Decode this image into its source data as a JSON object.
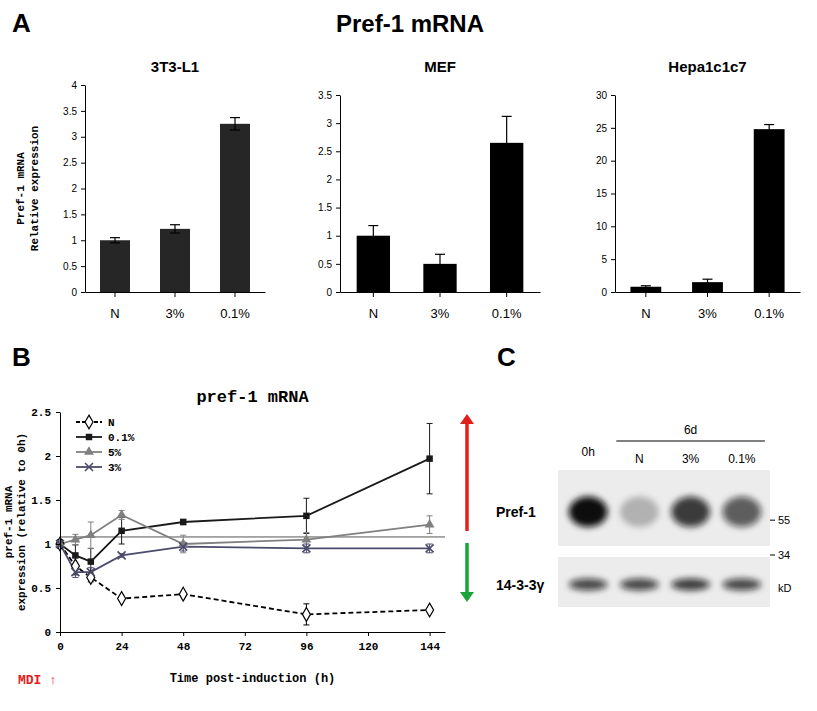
{
  "figure": {
    "title": "Pref-1 mRNA",
    "panels": [
      "A",
      "B",
      "C"
    ]
  },
  "chart_data": [
    {
      "type": "bar",
      "title": "3T3-L1",
      "ylabel": [
        "Pref-1 mRNA",
        "Relative expression"
      ],
      "categories": [
        "N",
        "3%",
        "0.1%"
      ],
      "values": [
        1.0,
        1.22,
        3.25
      ],
      "error": [
        0.05,
        0.08,
        0.12
      ],
      "color": "#262626",
      "ylim": [
        0,
        4
      ],
      "yticks": [
        0,
        0.5,
        1,
        1.5,
        2,
        2.5,
        3,
        3.5,
        4
      ]
    },
    {
      "type": "bar",
      "title": "MEF",
      "categories": [
        "N",
        "3%",
        "0.1%"
      ],
      "values": [
        1.0,
        0.5,
        2.65
      ],
      "error": [
        0.18,
        0.17,
        0.47
      ],
      "color": "#000000",
      "ylim": [
        0,
        3.5
      ],
      "yticks": [
        0,
        0.5,
        1,
        1.5,
        2,
        2.5,
        3,
        3.5
      ]
    },
    {
      "type": "bar",
      "title": "Hepa1c1c7",
      "categories": [
        "N",
        "3%",
        "0.1%"
      ],
      "values": [
        0.8,
        1.5,
        24.8
      ],
      "error": [
        0.15,
        0.45,
        0.7
      ],
      "color": "#000000",
      "ylim": [
        0,
        30
      ],
      "yticks": [
        0,
        5,
        10,
        15,
        20,
        25,
        30
      ]
    },
    {
      "type": "line",
      "title": "pref-1 mRNA",
      "ylabel": [
        "pref-1 mRNA",
        "expression (relative to 0h)"
      ],
      "xlabel": "Time post-induction (h)",
      "annotation": "MDI ↑",
      "x": [
        0,
        6,
        12,
        24,
        48,
        96,
        144
      ],
      "xlim": [
        0,
        150
      ],
      "xticks": [
        0,
        24,
        48,
        72,
        96,
        120,
        144
      ],
      "ylim": [
        0,
        2.5
      ],
      "yticks": [
        0,
        0.5,
        1,
        1.5,
        2,
        2.5
      ],
      "reference_line": 1.08,
      "legend": "upper left",
      "series": [
        {
          "name": "N",
          "color": "#000000",
          "marker": "diamond-open",
          "line_style": "dashed",
          "values": [
            1.0,
            0.75,
            0.62,
            0.38,
            0.43,
            0.2,
            0.25
          ],
          "error": [
            0.05,
            0.1,
            0.05,
            0.02,
            0.02,
            0.12,
            0.02
          ]
        },
        {
          "name": "0.1%",
          "color": "#1a1a1a",
          "marker": "square",
          "line_style": "solid",
          "values": [
            1.0,
            0.87,
            0.8,
            1.15,
            1.25,
            1.32,
            1.97
          ],
          "error": [
            0.05,
            0.12,
            0.15,
            0.15,
            0.03,
            0.2,
            0.4
          ]
        },
        {
          "name": "5%",
          "color": "#808080",
          "marker": "triangle",
          "line_style": "solid",
          "values": [
            1.0,
            1.05,
            1.1,
            1.33,
            1.0,
            1.05,
            1.22
          ],
          "error": [
            0.05,
            0.06,
            0.15,
            0.05,
            0.1,
            0.08,
            0.1
          ]
        },
        {
          "name": "3%",
          "color": "#4b4b6b",
          "marker": "x",
          "line_style": "solid",
          "values": [
            1.0,
            0.68,
            0.68,
            0.87,
            0.97,
            0.95,
            0.95
          ],
          "error": [
            0.05,
            0.06,
            0.05,
            0.02,
            0.05,
            0.05,
            0.05
          ]
        }
      ]
    }
  ],
  "blot": {
    "lanes": [
      "0h",
      "N",
      "3%",
      "0.1%"
    ],
    "time_label": "6d",
    "rows": [
      {
        "name": "Pref-1",
        "band_intensity": [
          1.0,
          0.25,
          0.8,
          0.65
        ]
      },
      {
        "name": "14-3-3γ",
        "band_intensity": [
          0.75,
          0.75,
          0.8,
          0.75
        ]
      }
    ],
    "markers": [
      55,
      34
    ],
    "unit": "kD"
  }
}
